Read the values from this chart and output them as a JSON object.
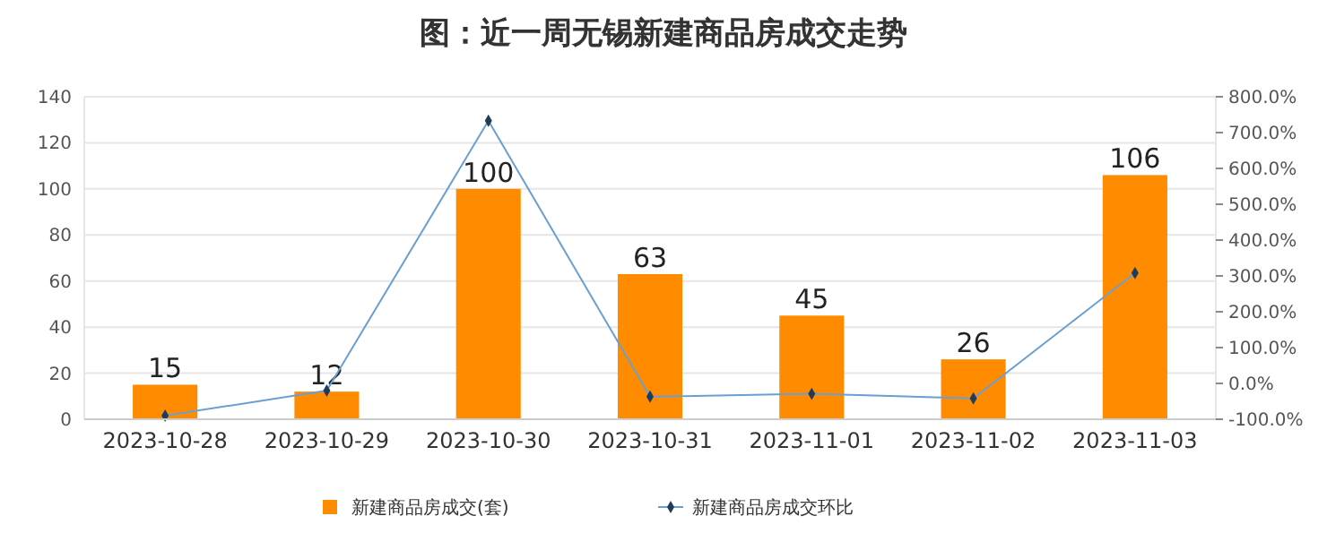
{
  "chart_data": {
    "type": "bar",
    "title": "图：近一周无锡新建商品房成交走势",
    "categories": [
      "2023-10-28",
      "2023-10-29",
      "2023-10-30",
      "2023-10-31",
      "2023-11-01",
      "2023-11-02",
      "2023-11-03"
    ],
    "series": [
      {
        "name": "新建商品房成交(套)",
        "color": "#ff8c00",
        "values": [
          15,
          12,
          100,
          63,
          45,
          26,
          106
        ],
        "value_labels": [
          "15",
          "12",
          "100",
          "63",
          "45",
          "26",
          "106"
        ]
      },
      {
        "name": "新建商品房成交环比",
        "type": "line",
        "axis": "y2",
        "color": "#6a9fd4",
        "marker": "diamond",
        "values": [
          -90,
          -20,
          733,
          -37,
          -29,
          -42,
          308
        ]
      }
    ],
    "ylim": [
      0,
      140
    ],
    "yticks": [
      0,
      20,
      40,
      60,
      80,
      100,
      120,
      140
    ],
    "y2lim": [
      -100,
      800
    ],
    "y2ticks": [
      {
        "value": -100,
        "label": "-100.0%"
      },
      {
        "value": 0,
        "label": "0.0%"
      },
      {
        "value": 100,
        "label": "100.0%"
      },
      {
        "value": 200,
        "label": "200.0%"
      },
      {
        "value": 300,
        "label": "300.0%"
      },
      {
        "value": 400,
        "label": "400.0%"
      },
      {
        "value": 500,
        "label": "500.0%"
      },
      {
        "value": 600,
        "label": "600.0%"
      },
      {
        "value": 700,
        "label": "700.0%"
      },
      {
        "value": 800,
        "label": "800.0%"
      }
    ],
    "grid": "y",
    "legend": "bottom"
  }
}
